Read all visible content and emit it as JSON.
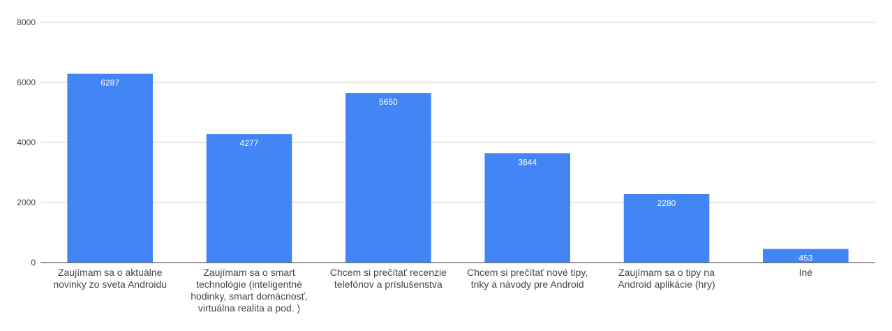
{
  "chart_data": {
    "type": "bar",
    "categories": [
      [
        "Zaujímam sa o aktuálne",
        "novinky zo sveta Androidu"
      ],
      [
        "Zaujímam sa o smart",
        "technológie (inteligentné",
        "hodinky, smart domácnosť,",
        "virtuálna realita a pod. )"
      ],
      [
        "Chcem si prečítať recenzie",
        "telefónov a príslušenstva"
      ],
      [
        "Chcem si prečítať nové tipy,",
        "triky a návody pre Android"
      ],
      [
        "Zaujímam sa o tipy na",
        "Android aplikácie (hry)"
      ],
      [
        "Iné"
      ]
    ],
    "values": [
      6287,
      4277,
      5650,
      3644,
      2280,
      453
    ],
    "data_labels": [
      "6287",
      "4277",
      "5650",
      "3644",
      "2280",
      "453"
    ],
    "ylim": [
      0,
      8000
    ],
    "yticks": [
      0,
      2000,
      4000,
      6000,
      8000
    ],
    "ytick_labels": [
      "0",
      "2000",
      "4000",
      "6000",
      "8000"
    ],
    "grid": true,
    "bar_color": "#4285f4",
    "grid_color": "#cccccc",
    "axis_color": "#333333"
  }
}
